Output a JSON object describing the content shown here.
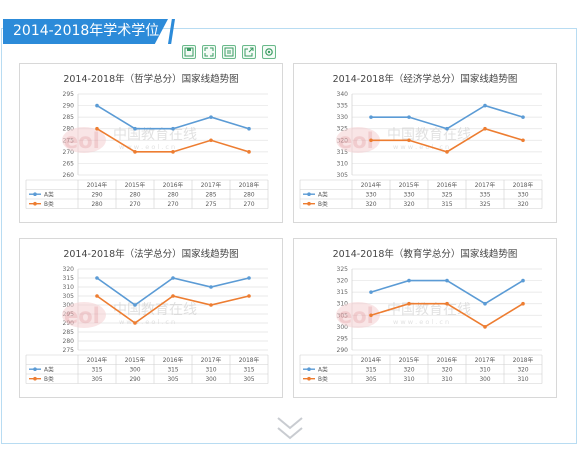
{
  "header": {
    "title": "2014-2018年学术学位"
  },
  "toolbar": {
    "icons": [
      "save-icon",
      "fullscreen-icon",
      "data-view-icon",
      "export-icon",
      "settings-icon"
    ]
  },
  "colors": {
    "a_line": "#5b9bd5",
    "b_line": "#ed7d31",
    "accent": "#2c8bd9"
  },
  "watermark": {
    "cn": "中国教育在线",
    "en": "w w w . e o l . c n",
    "logo": "eol"
  },
  "chart_data": [
    {
      "type": "line",
      "title": "2014-2018年（哲学总分）国家线趋势图",
      "categories": [
        "2014年",
        "2015年",
        "2016年",
        "2017年",
        "2018年"
      ],
      "ylim": [
        260,
        295
      ],
      "ystep": 5,
      "series": [
        {
          "name": "A类",
          "values": [
            290,
            280,
            280,
            285,
            280
          ]
        },
        {
          "name": "B类",
          "values": [
            280,
            270,
            270,
            275,
            270
          ]
        }
      ]
    },
    {
      "type": "line",
      "title": "2014-2018年（经济学总分）国家线趋势图",
      "categories": [
        "2014年",
        "2015年",
        "2016年",
        "2017年",
        "2018年"
      ],
      "ylim": [
        305,
        340
      ],
      "ystep": 5,
      "series": [
        {
          "name": "A类",
          "values": [
            330,
            330,
            325,
            335,
            330
          ]
        },
        {
          "name": "B类",
          "values": [
            320,
            320,
            315,
            325,
            320
          ]
        }
      ]
    },
    {
      "type": "line",
      "title": "2014-2018年（法学总分）国家线趋势图",
      "categories": [
        "2014年",
        "2015年",
        "2016年",
        "2017年",
        "2018年"
      ],
      "ylim": [
        275,
        320
      ],
      "ystep": 5,
      "series": [
        {
          "name": "A类",
          "values": [
            315,
            300,
            315,
            310,
            315
          ]
        },
        {
          "name": "B类",
          "values": [
            305,
            290,
            305,
            300,
            305
          ]
        }
      ]
    },
    {
      "type": "line",
      "title": "2014-2018年（教育学总分）国家线趋势图",
      "categories": [
        "2014年",
        "2015年",
        "2016年",
        "2017年",
        "2018年"
      ],
      "ylim": [
        290,
        325
      ],
      "ystep": 5,
      "series": [
        {
          "name": "A类",
          "values": [
            315,
            320,
            320,
            310,
            320
          ]
        },
        {
          "name": "B类",
          "values": [
            305,
            310,
            310,
            300,
            310
          ]
        }
      ]
    }
  ]
}
